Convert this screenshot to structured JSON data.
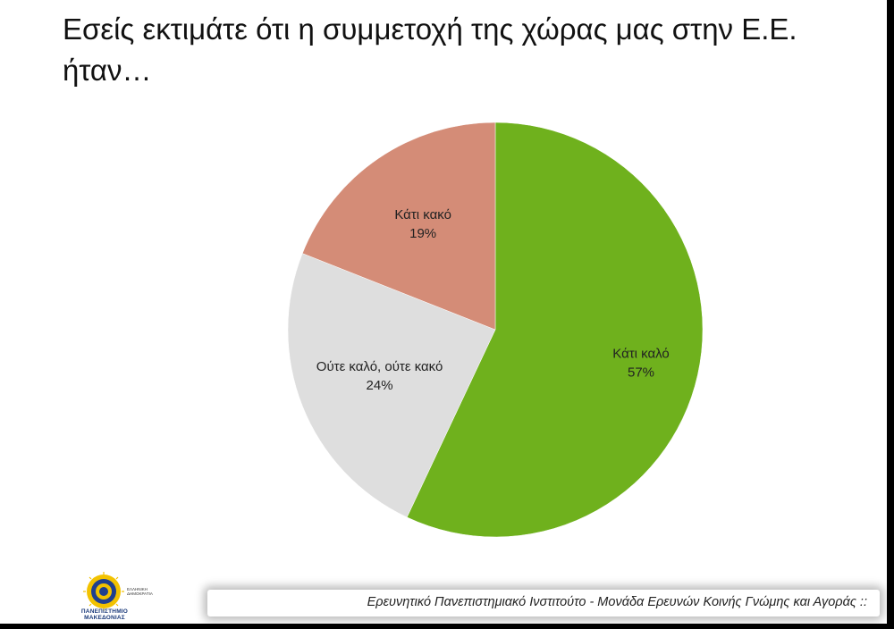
{
  "title": "Εσείς εκτιμάτε ότι η συμμετοχή της χώρας μας στην Ε.Ε. ήταν…",
  "footer": {
    "text": "Ερευνητικό Πανεπιστημιακό Ινστιτούτο - Μονάδα Ερευνών Κοινής Γνώμης και Αγοράς ::"
  },
  "logo": {
    "name": "ΠΑΝΕΠΙΣΤΗΜΙΟ ΜΑΚΕΔΟΝΙΑΣ",
    "republic": "ΕΛΛΗΝΙΚΗ ΔΗΜΟΚΡΑΤΙΑ"
  },
  "chart_data": {
    "type": "pie",
    "title": "Εσείς εκτιμάτε ότι η συμμετοχή της χώρας μας στην Ε.Ε. ήταν…",
    "categories": [
      "Κάτι καλό",
      "Ούτε καλό, ούτε κακό",
      "Κάτι κακό"
    ],
    "values": [
      57,
      24,
      19
    ],
    "value_labels": [
      "57%",
      "24%",
      "19%"
    ],
    "colors": [
      "#6fb11d",
      "#dedede",
      "#d48c77"
    ],
    "start": "12 o'clock, clockwise",
    "legend": "none (labels inside slices)"
  }
}
